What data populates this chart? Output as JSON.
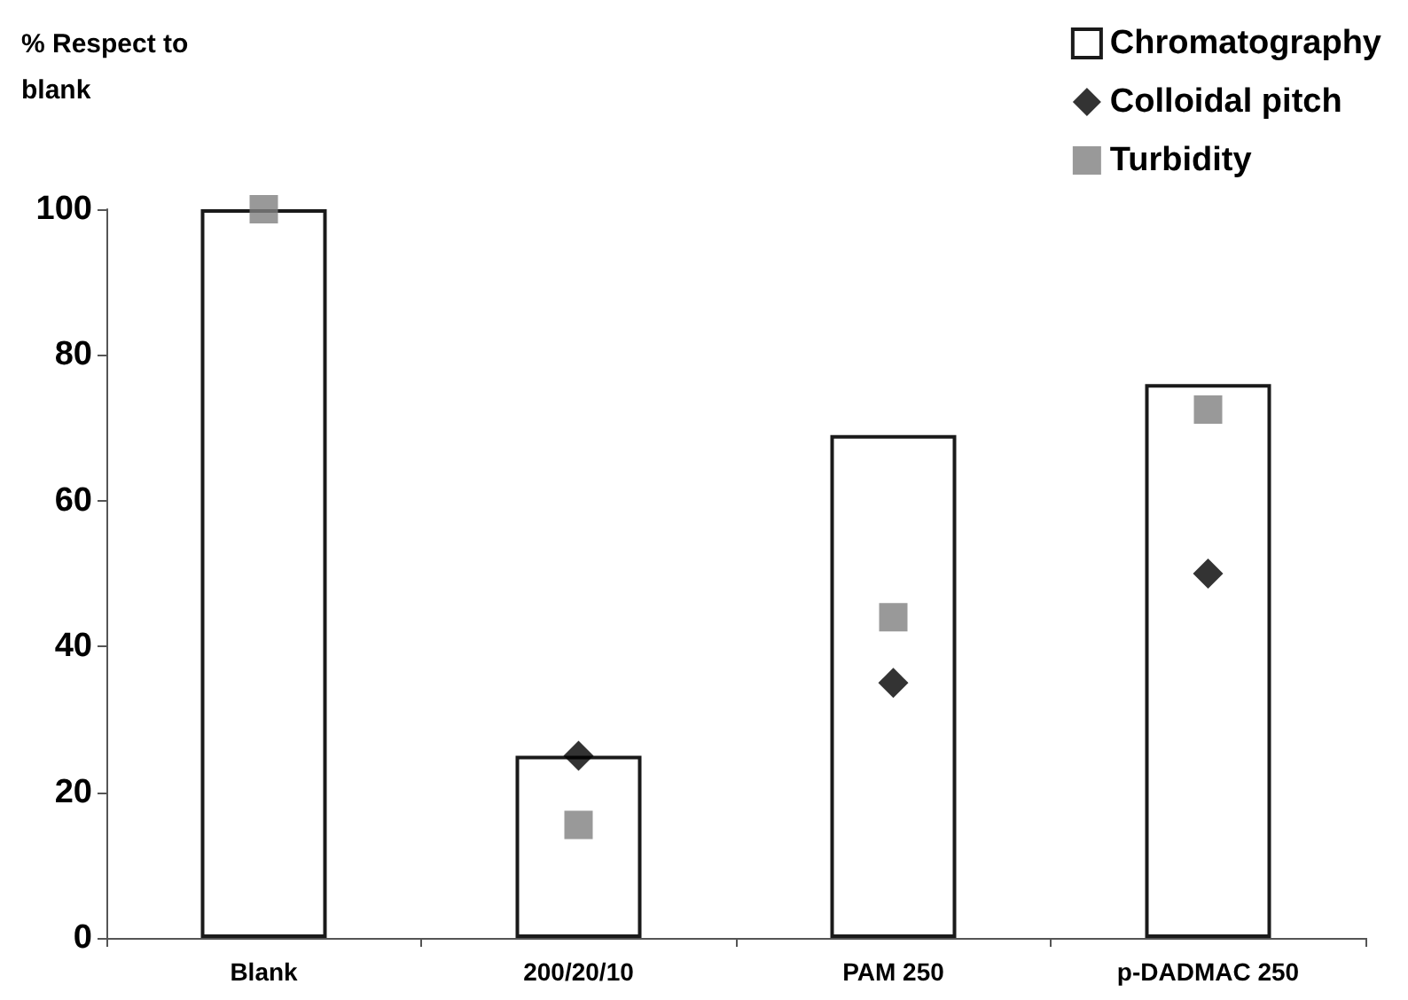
{
  "chart_data": {
    "type": "bar",
    "ylabel": "% Respect to blank",
    "categories": [
      "Blank",
      "200/20/10",
      "PAM 250",
      "p-DADMAC 250"
    ],
    "series": [
      {
        "name": "Chromatography",
        "color": "#ffffff",
        "values": [
          100,
          25,
          69,
          76
        ]
      },
      {
        "name": "Colloidal pitch",
        "type": "scatter",
        "marker": "diamond",
        "color": "#000000",
        "x": [
          "Blank",
          "200/20/10",
          "PAM 250",
          "p-DADMAC 250"
        ],
        "values": [
          null,
          25,
          35,
          50
        ]
      },
      {
        "name": "Turbidity",
        "type": "scatter",
        "marker": "square",
        "color": "#808080",
        "x": [
          "Blank",
          "200/20/10",
          "PAM 250",
          "p-DADMAC 250"
        ],
        "values": [
          100,
          15.5,
          44,
          72.5
        ]
      }
    ],
    "ylim": [
      0,
      100
    ],
    "yticks": [
      0,
      20,
      40,
      60,
      80,
      100
    ],
    "grid": false,
    "legend": "top right"
  }
}
